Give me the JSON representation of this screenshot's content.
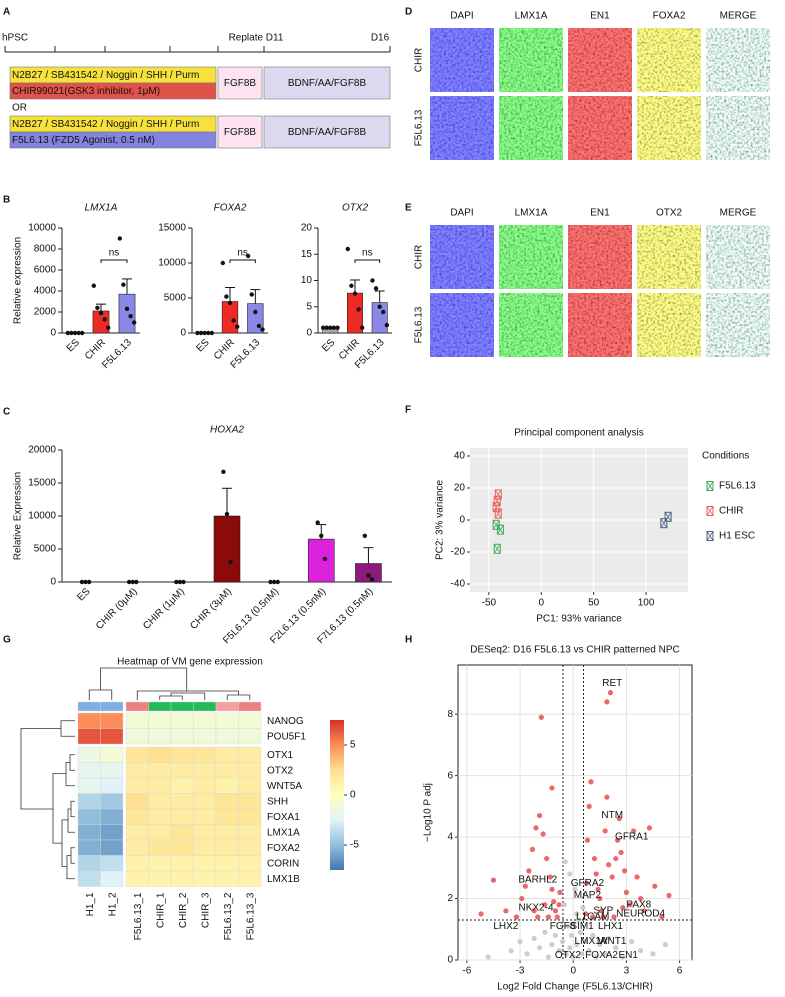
{
  "panel_labels": [
    "A",
    "B",
    "C",
    "D",
    "E",
    "F",
    "G",
    "H"
  ],
  "timeline": {
    "labels": [
      "hPSC",
      "Replate D11",
      "D16"
    ],
    "separator": "OR",
    "protocols": [
      {
        "base": "N2B27 / SB431542 / Noggin / SHH / Purm",
        "agent": "CHIR99021(GSK3 inhibitor, 1μM)",
        "color": "#e0524a",
        "steps": [
          "FGF8B",
          "BDNF/AA/FGF8B"
        ]
      },
      {
        "base": "N2B27 / SB431542 / Noggin / SHH / Purm",
        "agent": "F5L6.13 (FZD5 Agonist, 0.5 nM)",
        "color": "#8484e0",
        "steps": [
          "FGF8B",
          "BDNF/AA/FGF8B"
        ]
      }
    ]
  },
  "micrographs": [
    {
      "rows": [
        "CHIR",
        "F5L6.13"
      ],
      "channels": [
        {
          "label": "DAPI",
          "color": "#2a2aff",
          "image_color": "#2a2aff"
        },
        {
          "label": "LMX1A",
          "color": "#22bb22",
          "image_color": "#30d030"
        },
        {
          "label": "EN1",
          "color": "#e02020",
          "image_color": "#d82020"
        },
        {
          "label": "FOXA2",
          "color": "#c8c020",
          "image_color": "#d0d030"
        },
        {
          "label": "MERGE",
          "color": "#111111",
          "image_color": "#a8d0c0"
        }
      ]
    },
    {
      "rows": [
        "CHIR",
        "F5L6.13"
      ],
      "channels": [
        {
          "label": "DAPI",
          "color": "#2a2aff",
          "image_color": "#2a2aff"
        },
        {
          "label": "LMX1A",
          "color": "#22bb22",
          "image_color": "#30d030"
        },
        {
          "label": "EN1",
          "color": "#e02020",
          "image_color": "#d82020"
        },
        {
          "label": "OTX2",
          "color": "#c8c020",
          "image_color": "#d0d030"
        },
        {
          "label": "MERGE",
          "color": "#111111",
          "image_color": "#a8d0c0"
        }
      ]
    }
  ],
  "chart_data": [
    {
      "type": "bar",
      "title": "LMX1A",
      "ylabel": "Relative expression",
      "categories": [
        "ES",
        "CHIR",
        "F5L6.13"
      ],
      "values": [
        0,
        2100,
        3700
      ],
      "errors": [
        0,
        650,
        1450
      ],
      "colors": [
        "#888888",
        "#ee2a24",
        "#8a87e6"
      ],
      "points": [
        [
          0,
          0,
          0,
          0,
          0
        ],
        [
          4500,
          2400,
          1900,
          1300,
          500
        ],
        [
          9000,
          4600,
          2300,
          1600,
          1000
        ]
      ],
      "ylim": [
        0,
        10000
      ],
      "yticks": [
        0,
        2000,
        4000,
        6000,
        8000,
        10000
      ],
      "significance_label": "ns"
    },
    {
      "type": "bar",
      "title": "FOXA2",
      "categories": [
        "ES",
        "CHIR",
        "F5L6.13"
      ],
      "values": [
        0,
        4500,
        4200
      ],
      "errors": [
        0,
        2000,
        2000
      ],
      "colors": [
        "#888888",
        "#ee2a24",
        "#8a87e6"
      ],
      "points": [
        [
          0,
          0,
          0,
          0,
          0
        ],
        [
          10000,
          5200,
          4300,
          1800,
          900
        ],
        [
          11000,
          5500,
          3000,
          1000,
          500
        ]
      ],
      "ylim": [
        0,
        15000
      ],
      "yticks": [
        0,
        5000,
        10000,
        15000
      ],
      "significance_label": "ns"
    },
    {
      "type": "bar",
      "title": "OTX2",
      "categories": [
        "ES",
        "CHIR",
        "F5L6.13"
      ],
      "values": [
        1,
        7.6,
        5.8
      ],
      "errors": [
        0.05,
        2.5,
        2.2
      ],
      "colors": [
        "#aaaaaa",
        "#ee2a24",
        "#8a87e6"
      ],
      "points": [
        [
          1,
          1,
          1,
          1,
          1
        ],
        [
          16,
          9,
          7.5,
          4.5,
          1
        ],
        [
          10,
          8.5,
          5,
          4,
          1.5
        ]
      ],
      "ylim": [
        0,
        20
      ],
      "yticks": [
        0,
        5,
        10,
        15,
        20
      ],
      "significance_label": "ns"
    },
    {
      "type": "bar",
      "title": "HOXA2",
      "ylabel": "Relative  Expression",
      "categories": [
        "ES",
        "CHIR (0μM)",
        "CHIR (1μM)",
        "CHIR (3μM)",
        "F5L6.13 (0.5nM)",
        "F2L6.13 (0.5nM)",
        "F7L6.13 (0.5nM)"
      ],
      "values": [
        0,
        0,
        0,
        10000,
        0,
        6500,
        2800
      ],
      "errors": [
        0,
        0,
        0,
        4200,
        0,
        2200,
        2400
      ],
      "colors": [
        "#888888",
        "#888888",
        "#888888",
        "#8b0a0a",
        "#888888",
        "#dd22dd",
        "#8b1a7b"
      ],
      "points": [
        [
          0,
          0,
          0
        ],
        [
          0,
          0,
          0
        ],
        [
          0,
          0,
          0
        ],
        [
          16700,
          10300,
          3000
        ],
        [
          0,
          0,
          0
        ],
        [
          9000,
          7000,
          3500
        ],
        [
          7000,
          1000,
          400
        ]
      ],
      "ylim": [
        0,
        20000
      ],
      "yticks": [
        0,
        5000,
        10000,
        15000,
        20000
      ]
    },
    {
      "type": "scatter",
      "title": "Principal component analysis",
      "xlabel": "PC1: 93% variance",
      "ylabel": "PC2: 3% variance",
      "xlim": [
        -68,
        140
      ],
      "ylim": [
        -45,
        45
      ],
      "xticks": [
        -50,
        0,
        50,
        100
      ],
      "yticks": [
        -40,
        -20,
        0,
        20,
        40
      ],
      "grid": true,
      "background": "#ebebeb",
      "marker": "square-cross",
      "legend_title": "Conditions",
      "series": [
        {
          "name": "F5L6.13",
          "color": "#3aaa5a",
          "x": [
            -43,
            -39,
            -42
          ],
          "values": [
            -3,
            -6,
            -18
          ]
        },
        {
          "name": "CHIR",
          "color": "#e8605a",
          "x": [
            -41,
            -42,
            -43,
            -41
          ],
          "values": [
            16,
            12,
            8,
            4
          ]
        },
        {
          "name": "H1 ESC",
          "color": "#4a5f80",
          "x": [
            117,
            121
          ],
          "values": [
            -2,
            2
          ]
        }
      ]
    },
    {
      "type": "heatmap",
      "title": "Heatmap of VM gene expression",
      "x": [
        "H1_1",
        "H1_2",
        "F5L6.13_1",
        "CHIR_1",
        "CHIR_2",
        "CHIR_3",
        "F5L6.13_2",
        "F5L6.13_3"
      ],
      "y": [
        "NANOG",
        "POU5F1",
        "OTX1",
        "OTX2",
        "WNT5A",
        "SHH",
        "FOXA1",
        "LMX1A",
        "FOXA2",
        "CORIN",
        "LMX1B"
      ],
      "values": [
        [
          5,
          5,
          -1,
          -1,
          -1,
          -1,
          -1,
          -1
        ],
        [
          6.5,
          6.5,
          -1.2,
          -1.2,
          -1.2,
          -1.2,
          -1.2,
          -1.2
        ],
        [
          -1.5,
          -1,
          2,
          2.5,
          2,
          2,
          1.5,
          1.5
        ],
        [
          -2,
          -2,
          1.5,
          1.5,
          1.5,
          1.5,
          1.5,
          1.5
        ],
        [
          -2,
          -2.5,
          1.5,
          1.5,
          1,
          1.5,
          1,
          1.5
        ],
        [
          -4,
          -4.5,
          2.5,
          1.5,
          1.5,
          1.5,
          2,
          2
        ],
        [
          -5,
          -5.5,
          2,
          1.5,
          1.5,
          1.5,
          2,
          2
        ],
        [
          -5.5,
          -6,
          1.5,
          1.5,
          2,
          1.5,
          1.5,
          1.5
        ],
        [
          -5.5,
          -6,
          1.5,
          2,
          2,
          1.5,
          1.5,
          1.5
        ],
        [
          -4,
          -3.5,
          1,
          1,
          1,
          1,
          1,
          1
        ],
        [
          -3.5,
          -2.5,
          1,
          1,
          1,
          1,
          1,
          1
        ]
      ],
      "column_colors": [
        "#7eaee3",
        "#7eaee3",
        "#f08080",
        "#22bb55",
        "#22bb55",
        "#22bb55",
        "#f4a0a0",
        "#f08080"
      ],
      "zlim": [
        -7.5,
        7.5
      ],
      "colorbar_ticks": [
        -5,
        0,
        5
      ],
      "palette": [
        "#4575b4",
        "#91bfdb",
        "#e0f3f8",
        "#ffffbf",
        "#fee090",
        "#fc8d59",
        "#d73027"
      ]
    },
    {
      "type": "scatter",
      "title": "DESeq2: D16 F5L6.13 vs CHIR patterned NPC",
      "xlabel": "Log2 Fold Change (F5L6.13/CHIR)",
      "ylabel": "−Log10 P adj",
      "xlim": [
        -6.5,
        6.7
      ],
      "ylim": [
        0,
        9.6
      ],
      "xticks": [
        -6,
        -3,
        0,
        3,
        6
      ],
      "yticks": [
        0,
        2,
        4,
        6,
        8
      ],
      "grid": true,
      "background": "#ffffff",
      "frame": true,
      "marker": "circle",
      "vlines": [
        -0.58,
        0.58
      ],
      "hline": 1.3,
      "series": [
        {
          "color": "#c8c8c8",
          "x": [
            -4.8,
            -3.5,
            -3.0,
            -2.6,
            -2.2,
            -1.9,
            -1.6,
            -1.4,
            -1.2,
            -1.0,
            -0.8,
            -0.6,
            -0.5,
            -0.4,
            -0.3,
            -0.2,
            -0.1,
            0.0,
            0.1,
            0.2,
            0.3,
            0.4,
            0.5,
            0.55,
            0.7,
            0.9,
            1.1,
            1.3,
            1.5,
            1.8,
            2.0,
            2.4,
            2.8,
            3.3,
            3.8,
            4.5,
            5.2,
            -0.45,
            0.2,
            -0.2
          ],
          "values": [
            0.1,
            0.3,
            0.6,
            0.2,
            0.7,
            0.4,
            0.9,
            0.1,
            0.5,
            0.8,
            0.3,
            0.6,
            1.8,
            0.2,
            1.1,
            0.4,
            0.8,
            0.1,
            2.3,
            0.5,
            1.3,
            0.9,
            0.2,
            1.7,
            0.6,
            0.3,
            0.8,
            0.1,
            0.5,
            0.2,
            0.7,
            0.4,
            0.1,
            0.6,
            0.3,
            0.2,
            0.5,
            3.2,
            1.5,
            2.8
          ]
        },
        {
          "color": "#e8575a",
          "x": [
            -4.5,
            -5.2,
            -3.8,
            -3.2,
            -2.9,
            -2.7,
            -2.5,
            -2.3,
            -2.1,
            -1.9,
            -1.7,
            -1.5,
            -1.3,
            -1.2,
            -1.1,
            -1.0,
            -0.9,
            -0.8,
            -0.75,
            -2.2,
            -1.6,
            -1.4,
            -1.8,
            -1.2,
            -2.0,
            0.8,
            0.9,
            1.0,
            1.2,
            1.3,
            1.4,
            1.5,
            1.6,
            1.7,
            1.8,
            1.9,
            2.0,
            2.2,
            2.4,
            2.5,
            2.6,
            2.7,
            2.9,
            3.0,
            3.2,
            3.4,
            3.6,
            3.8,
            4.0,
            4.3,
            4.6,
            5.0,
            5.4,
            2.1,
            1.9,
            0.7,
            0.75,
            1.1,
            2.3,
            2.8
          ],
          "values": [
            2.6,
            1.5,
            1.6,
            1.4,
            2.0,
            2.4,
            2.9,
            3.6,
            4.3,
            4.7,
            4.1,
            3.3,
            2.7,
            2.3,
            1.9,
            1.6,
            1.4,
            1.8,
            2.2,
            1.6,
            1.8,
            1.4,
            7.9,
            5.6,
            1.4,
            3.9,
            5.0,
            5.8,
            3.3,
            2.8,
            2.3,
            2.0,
            1.6,
            1.4,
            4.2,
            5.3,
            3.1,
            2.7,
            3.3,
            3.9,
            4.6,
            3.5,
            2.9,
            2.2,
            1.8,
            4.2,
            2.7,
            2.0,
            1.6,
            4.3,
            2.4,
            1.4,
            2.1,
            8.7,
            8.4,
            1.5,
            2.5,
            1.4,
            1.4,
            1.7
          ]
        }
      ],
      "annotations": [
        {
          "text": "RET",
          "x": 2.2,
          "y": 9.0
        },
        {
          "text": "NTM",
          "x": 2.2,
          "y": 4.7
        },
        {
          "text": "GFRA1",
          "x": 3.3,
          "y": 4.0
        },
        {
          "text": "BARHL2",
          "x": -2.0,
          "y": 2.6
        },
        {
          "text": "GFRA2",
          "x": 0.8,
          "y": 2.5
        },
        {
          "text": "MAP2",
          "x": 0.8,
          "y": 2.1
        },
        {
          "text": "PAX8",
          "x": 3.7,
          "y": 1.8
        },
        {
          "text": "NKX2-4",
          "x": -2.1,
          "y": 1.7
        },
        {
          "text": "SYP",
          "x": 1.7,
          "y": 1.6
        },
        {
          "text": "NEUROD4",
          "x": 3.8,
          "y": 1.5
        },
        {
          "text": "L1CAM",
          "x": 1.1,
          "y": 1.4
        },
        {
          "text": "LHX1",
          "x": 2.1,
          "y": 1.1
        },
        {
          "text": "LHX2",
          "x": -3.8,
          "y": 1.1
        },
        {
          "text": "FGF8",
          "x": -0.6,
          "y": 1.1
        },
        {
          "text": "SIM1",
          "x": 0.5,
          "y": 1.1
        },
        {
          "text": "WNT1",
          "x": 2.2,
          "y": 0.6
        },
        {
          "text": "LMX1A",
          "x": 1.0,
          "y": 0.6
        },
        {
          "text": "OTX2",
          "x": -0.3,
          "y": 0.15
        },
        {
          "text": "FOXA2",
          "x": 1.6,
          "y": 0.15
        },
        {
          "text": "EN1",
          "x": 3.1,
          "y": 0.15
        }
      ]
    }
  ]
}
